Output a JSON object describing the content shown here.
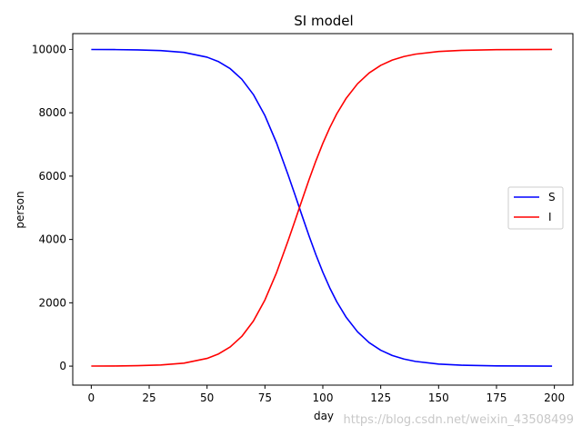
{
  "chart_data": {
    "type": "line",
    "title": "SI model",
    "xlabel": "day",
    "ylabel": "person",
    "xlim": [
      -8,
      208
    ],
    "ylim": [
      -600,
      10500
    ],
    "xticks": [
      0,
      25,
      50,
      75,
      100,
      125,
      150,
      175,
      200
    ],
    "yticks": [
      0,
      2000,
      4000,
      6000,
      8000,
      10000
    ],
    "grid": false,
    "legend_position": "center-right",
    "series": [
      {
        "name": "S",
        "color": "#0000ff",
        "x": [
          0,
          10,
          20,
          30,
          40,
          50,
          55,
          60,
          65,
          70,
          75,
          80,
          85,
          88,
          91,
          94,
          97,
          100,
          103,
          106,
          110,
          115,
          120,
          125,
          130,
          135,
          140,
          150,
          160,
          175,
          199
        ],
        "y": [
          9998,
          9995,
          9986,
          9964,
          9906,
          9756,
          9613,
          9393,
          9061,
          8577,
          7910,
          7051,
          6040,
          5406,
          4758,
          4122,
          3520,
          2966,
          2470,
          2035,
          1552,
          1083,
          742,
          502,
          336,
          224,
          149,
          65,
          28,
          8,
          1
        ]
      },
      {
        "name": "I",
        "color": "#ff0000",
        "x": [
          0,
          10,
          20,
          30,
          40,
          50,
          55,
          60,
          65,
          70,
          75,
          80,
          85,
          88,
          91,
          94,
          97,
          100,
          103,
          106,
          110,
          115,
          120,
          125,
          130,
          135,
          140,
          150,
          160,
          175,
          199
        ],
        "y": [
          2,
          5,
          14,
          36,
          94,
          244,
          387,
          607,
          939,
          1423,
          2090,
          2949,
          3960,
          4594,
          5242,
          5878,
          6480,
          7034,
          7530,
          7965,
          8448,
          8917,
          9258,
          9498,
          9664,
          9776,
          9851,
          9935,
          9972,
          9992,
          9999
        ]
      }
    ]
  },
  "watermark": "https://blog.csdn.net/weixin_43508499"
}
